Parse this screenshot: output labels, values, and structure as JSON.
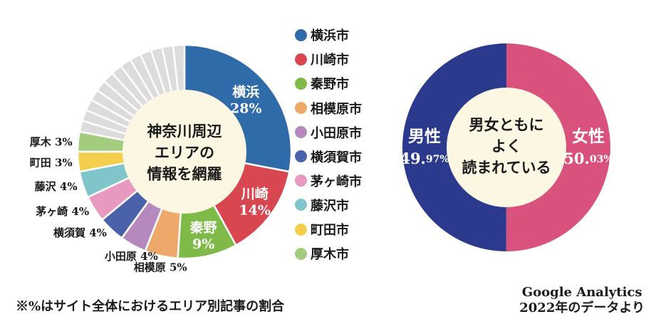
{
  "colors": {
    "background": "#ffffff",
    "remainder_slices": "#dcdcdc",
    "center_fill": "#fbf7e2",
    "slice_border": "#ffffff"
  },
  "chart_data": [
    {
      "type": "pie",
      "variant": "donut",
      "center_label": [
        "神奈川周辺",
        "エリアの",
        "情報を網羅"
      ],
      "remainder_slice_count": 13,
      "series": [
        {
          "name": "横浜市",
          "value": 28,
          "label_name": "横浜",
          "label_value": "28%",
          "label_position": "inside",
          "color": "#2f6aa9"
        },
        {
          "name": "川崎市",
          "value": 14,
          "label_name": "川崎",
          "label_value": "14%",
          "label_position": "inside",
          "color": "#d8464f"
        },
        {
          "name": "秦野市",
          "value": 9,
          "label_name": "秦野",
          "label_value": "9%",
          "label_position": "inside",
          "color": "#7fba48"
        },
        {
          "name": "相模原市",
          "value": 5,
          "label_text": "相模原 5%",
          "label_position": "outside",
          "color": "#eda86a"
        },
        {
          "name": "小田原市",
          "value": 4,
          "label_text": "小田原 4%",
          "label_position": "outside",
          "color": "#b589bd"
        },
        {
          "name": "横須賀市",
          "value": 4,
          "label_text": "横須賀 4%",
          "label_position": "outside",
          "color": "#4a62a9"
        },
        {
          "name": "茅ヶ崎市",
          "value": 4,
          "label_text": "茅ヶ崎 4%",
          "label_position": "outside",
          "color": "#e799c0"
        },
        {
          "name": "藤沢市",
          "value": 4,
          "label_text": "藤沢 4%",
          "label_position": "outside",
          "color": "#7fc5c9"
        },
        {
          "name": "町田市",
          "value": 3,
          "label_text": "町田 3%",
          "label_position": "outside",
          "color": "#f4cf4e"
        },
        {
          "name": "厚木市",
          "value": 3,
          "label_text": "厚木 3%",
          "label_position": "outside",
          "color": "#a3cc7e"
        }
      ]
    },
    {
      "type": "pie",
      "variant": "donut",
      "center_label": [
        "男女ともに",
        "よく",
        "読まれている"
      ],
      "series": [
        {
          "name": "男性",
          "value": 49.97,
          "int_part": "49.",
          "dec_part": "97%",
          "color": "#2b3a8c"
        },
        {
          "name": "女性",
          "value": 50.03,
          "int_part": "50.",
          "dec_part": "03%",
          "color": "#d9527d"
        }
      ]
    }
  ],
  "legend": [
    {
      "label": "横浜市",
      "color": "#2f6aa9"
    },
    {
      "label": "川崎市",
      "color": "#d8464f"
    },
    {
      "label": "秦野市",
      "color": "#7fba48"
    },
    {
      "label": "相模原市",
      "color": "#eda86a"
    },
    {
      "label": "小田原市",
      "color": "#b589bd"
    },
    {
      "label": "横須賀市",
      "color": "#4a62a9"
    },
    {
      "label": "茅ヶ崎市",
      "color": "#e799c0"
    },
    {
      "label": "藤沢市",
      "color": "#7fc5c9"
    },
    {
      "label": "町田市",
      "color": "#f4cf4e"
    },
    {
      "label": "厚木市",
      "color": "#a3cc7e"
    }
  ],
  "footnote": "※%はサイト全体におけるエリア別記事の割合",
  "source": {
    "line1": "Google Analytics",
    "line2": "2022年のデータより"
  }
}
